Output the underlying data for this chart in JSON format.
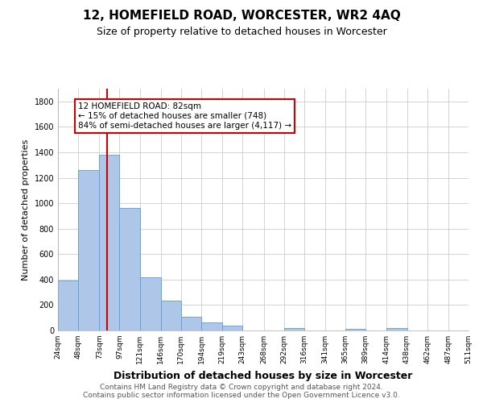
{
  "title": "12, HOMEFIELD ROAD, WORCESTER, WR2 4AQ",
  "subtitle": "Size of property relative to detached houses in Worcester",
  "xlabel": "Distribution of detached houses by size in Worcester",
  "ylabel": "Number of detached properties",
  "footer_line1": "Contains HM Land Registry data © Crown copyright and database right 2024.",
  "footer_line2": "Contains public sector information licensed under the Open Government Licence v3.0.",
  "annotation_line1": "12 HOMEFIELD ROAD: 82sqm",
  "annotation_line2": "← 15% of detached houses are smaller (748)",
  "annotation_line3": "84% of semi-detached houses are larger (4,117) →",
  "property_size": 82,
  "bar_edges": [
    24,
    48,
    73,
    97,
    121,
    146,
    170,
    194,
    219,
    243,
    268,
    292,
    316,
    341,
    365,
    389,
    414,
    438,
    462,
    487,
    511
  ],
  "bar_heights": [
    390,
    1260,
    1380,
    960,
    415,
    235,
    110,
    65,
    40,
    0,
    0,
    20,
    0,
    0,
    15,
    0,
    20,
    0,
    0,
    0
  ],
  "bar_color": "#aec6e8",
  "bar_edge_color": "#5a9fd4",
  "red_line_color": "#cc0000",
  "annotation_box_color": "#cc0000",
  "annotation_text_color": "#000000",
  "background_color": "#ffffff",
  "grid_color": "#cccccc",
  "ylim": [
    0,
    1900
  ],
  "yticks": [
    0,
    200,
    400,
    600,
    800,
    1000,
    1200,
    1400,
    1600,
    1800
  ],
  "xlim": [
    24,
    511
  ],
  "title_fontsize": 11,
  "subtitle_fontsize": 9,
  "ylabel_fontsize": 8,
  "xlabel_fontsize": 9
}
